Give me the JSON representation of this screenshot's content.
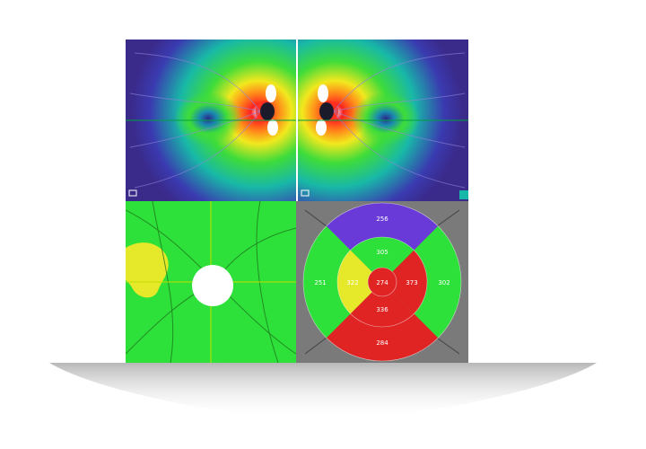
{
  "etdrs": {
    "superior_outer": "256",
    "superior_inner": "305",
    "temporal_outer": "251",
    "temporal_inner": "322",
    "center": "274",
    "nasal_inner": "373",
    "nasal_outer": "302",
    "inferior_inner": "336",
    "inferior_outer": "284"
  },
  "colors": {
    "heatmap_background": "#3a2a8a",
    "normal": "#2ee03a",
    "borderline": "#e6e82a",
    "thick": "#e02424",
    "thin": "#6a3ad8",
    "cursor_line": "#c0e000"
  }
}
